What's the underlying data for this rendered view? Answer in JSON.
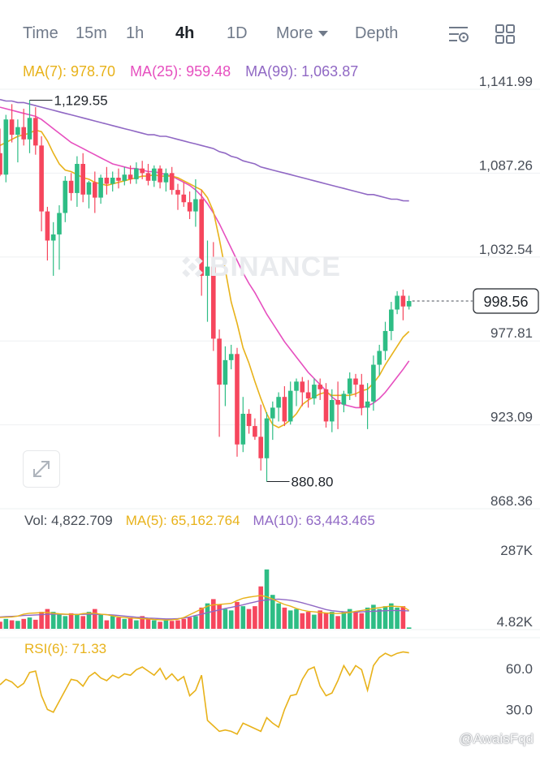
{
  "tabs": [
    {
      "label": "Time",
      "active": false
    },
    {
      "label": "15m",
      "active": false
    },
    {
      "label": "1h",
      "active": false
    },
    {
      "label": "4h",
      "active": true
    },
    {
      "label": "1D",
      "active": false
    },
    {
      "label": "More",
      "active": false
    },
    {
      "label": "Depth",
      "active": false
    }
  ],
  "toolbar_icons": [
    "indicator-settings-icon",
    "layout-grid-icon"
  ],
  "ma_legend": {
    "ma7": "MA(7): 978.70",
    "ma25": "MA(25): 959.48",
    "ma99": "MA(99): 1,063.87"
  },
  "price_axis_labels": [
    "1,141.99",
    "1,087.26",
    "1,032.54",
    "977.81",
    "923.09",
    "868.36"
  ],
  "high_marker": "1,129.55",
  "low_marker": "880.80",
  "current_price": "998.56",
  "watermark": "BINANCE",
  "vol_legend": {
    "vol": "Vol: 4,822.709",
    "ma5": "MA(5): 65,162.764",
    "ma10": "MA(10): 63,443.465"
  },
  "vol_axis_labels": [
    "287K",
    "4.82K"
  ],
  "rsi_legend": "RSI(6): 71.33",
  "rsi_axis_labels": [
    "60.0",
    "30.0"
  ],
  "footer_watermark": "@AwaisFqd",
  "colors": {
    "up": "#2ebd85",
    "down": "#f6465d",
    "ma7": "#e8b21a",
    "ma25": "#e64fbf",
    "ma99": "#9068c4",
    "grid": "#eef0f2"
  },
  "chart_data": {
    "type": "candlestick",
    "interval": "4h",
    "price_ylim": [
      868.36,
      1141.99
    ],
    "candles": [
      [
        1095,
        1111,
        1080,
        1081
      ],
      [
        1081,
        1120,
        1076,
        1117
      ],
      [
        1117,
        1127,
        1102,
        1107
      ],
      [
        1107,
        1117,
        1089,
        1112
      ],
      [
        1112,
        1124,
        1100,
        1104
      ],
      [
        1104,
        1129.55,
        1095,
        1118
      ],
      [
        1118,
        1125,
        1094,
        1100
      ],
      [
        1100,
        1106,
        1044,
        1057
      ],
      [
        1057,
        1060,
        1025,
        1038
      ],
      [
        1038,
        1050,
        1015,
        1042
      ],
      [
        1042,
        1061,
        1019,
        1056
      ],
      [
        1056,
        1080,
        1050,
        1077
      ],
      [
        1077,
        1082,
        1064,
        1069
      ],
      [
        1069,
        1093,
        1060,
        1088
      ],
      [
        1088,
        1095,
        1063,
        1068
      ],
      [
        1068,
        1077,
        1059,
        1076
      ],
      [
        1076,
        1083,
        1056,
        1066
      ],
      [
        1066,
        1081,
        1062,
        1079
      ],
      [
        1079,
        1086,
        1068,
        1075
      ],
      [
        1075,
        1083,
        1070,
        1079
      ],
      [
        1079,
        1085,
        1072,
        1077
      ],
      [
        1077,
        1086,
        1074,
        1081
      ],
      [
        1081,
        1087,
        1075,
        1078
      ],
      [
        1078,
        1089,
        1075,
        1085
      ],
      [
        1085,
        1090,
        1078,
        1082
      ],
      [
        1082,
        1088,
        1074,
        1077
      ],
      [
        1077,
        1087,
        1073,
        1085
      ],
      [
        1085,
        1087,
        1072,
        1076
      ],
      [
        1076,
        1085,
        1070,
        1082
      ],
      [
        1082,
        1086,
        1068,
        1071
      ],
      [
        1071,
        1075,
        1058,
        1068
      ],
      [
        1068,
        1076,
        1060,
        1063
      ],
      [
        1063,
        1070,
        1052,
        1057
      ],
      [
        1057,
        1078,
        1047,
        1065
      ],
      [
        1065,
        1071,
        1002,
        1015
      ],
      [
        1015,
        1038,
        985,
        1021
      ],
      [
        1021,
        1037,
        966,
        974
      ],
      [
        974,
        980,
        910,
        944
      ],
      [
        944,
        969,
        930,
        960
      ],
      [
        960,
        970,
        954,
        964
      ],
      [
        964,
        968,
        897,
        905
      ],
      [
        905,
        936,
        900,
        925
      ],
      [
        925,
        928,
        912,
        917
      ],
      [
        917,
        922,
        908,
        910
      ],
      [
        910,
        931,
        888,
        896
      ],
      [
        896,
        926,
        880.8,
        922
      ],
      [
        922,
        933,
        908,
        929
      ],
      [
        929,
        939,
        920,
        936
      ],
      [
        936,
        943,
        917,
        920
      ],
      [
        920,
        946,
        918,
        940
      ],
      [
        940,
        948,
        930,
        946
      ],
      [
        946,
        949,
        930,
        939
      ],
      [
        939,
        947,
        929,
        935
      ],
      [
        935,
        948,
        931,
        944
      ],
      [
        944,
        948,
        934,
        941
      ],
      [
        941,
        945,
        916,
        920
      ],
      [
        920,
        941,
        913,
        934
      ],
      [
        934,
        946,
        915,
        931
      ],
      [
        931,
        940,
        926,
        938
      ],
      [
        938,
        952,
        934,
        948
      ],
      [
        948,
        951,
        936,
        944
      ],
      [
        944,
        951,
        924,
        929
      ],
      [
        929,
        945,
        915,
        933
      ],
      [
        933,
        963,
        927,
        957
      ],
      [
        957,
        970,
        950,
        966
      ],
      [
        966,
        985,
        960,
        979
      ],
      [
        979,
        998,
        973,
        993
      ],
      [
        993,
        1005,
        990,
        1002
      ],
      [
        1002,
        1006,
        986,
        995
      ],
      [
        995,
        1002,
        993,
        998.56
      ]
    ],
    "ma7": [
      1100,
      1102,
      1104,
      1106,
      1107,
      1108,
      1110,
      1109,
      1103,
      1095,
      1088,
      1084,
      1083,
      1081,
      1079,
      1078,
      1076,
      1075,
      1074,
      1075,
      1076,
      1077,
      1078,
      1079,
      1080,
      1080,
      1081,
      1080,
      1080,
      1080,
      1079,
      1077,
      1075,
      1073,
      1071,
      1066,
      1057,
      1039,
      1019,
      998,
      984,
      968,
      958,
      946,
      935,
      925,
      918,
      916,
      918,
      921,
      925,
      931,
      934,
      936,
      938,
      939,
      937,
      937,
      937,
      937,
      938,
      940,
      941,
      945,
      950,
      957,
      963,
      969,
      975,
      978.7
    ],
    "ma25": [
      1125,
      1124,
      1123,
      1122,
      1121,
      1120,
      1119,
      1117,
      1114,
      1111,
      1108,
      1105,
      1102,
      1100,
      1098,
      1096,
      1094,
      1092,
      1090,
      1088,
      1087,
      1086,
      1085,
      1085,
      1084,
      1083,
      1083,
      1082,
      1081,
      1080,
      1078,
      1076,
      1074,
      1071,
      1067,
      1062,
      1056,
      1049,
      1041,
      1033,
      1025,
      1017,
      1010,
      1004,
      997,
      990,
      984,
      978,
      972,
      967,
      962,
      957,
      952,
      948,
      944,
      940,
      936,
      933,
      931,
      930,
      929,
      929,
      930,
      932,
      935,
      939,
      944,
      949,
      954,
      959.48
    ],
    "ma99": [
      1130,
      1129,
      1129,
      1128,
      1128,
      1127,
      1126,
      1125,
      1124,
      1123,
      1122,
      1121,
      1120,
      1119,
      1118,
      1117,
      1116,
      1115,
      1114,
      1113,
      1112,
      1111,
      1110,
      1109,
      1108,
      1107,
      1107,
      1106,
      1106,
      1105,
      1104,
      1103,
      1102,
      1101,
      1100,
      1099,
      1098,
      1096,
      1095,
      1093,
      1092,
      1090,
      1089,
      1088,
      1086,
      1085,
      1084,
      1083,
      1082,
      1081,
      1080,
      1079,
      1078,
      1077,
      1076,
      1075,
      1074,
      1073,
      1072,
      1071,
      1070,
      1069,
      1068,
      1068,
      1067,
      1066,
      1065,
      1065,
      1064,
      1063.87
    ],
    "volume": [
      25,
      35,
      30,
      28,
      35,
      40,
      32,
      60,
      70,
      60,
      50,
      45,
      55,
      50,
      45,
      60,
      70,
      50,
      30,
      45,
      40,
      35,
      40,
      30,
      45,
      38,
      30,
      25,
      30,
      28,
      30,
      35,
      40,
      45,
      75,
      90,
      105,
      85,
      70,
      65,
      95,
      80,
      70,
      80,
      150,
      210,
      120,
      90,
      75,
      65,
      70,
      55,
      60,
      50,
      65,
      55,
      60,
      45,
      60,
      70,
      60,
      55,
      75,
      85,
      70,
      80,
      90,
      75,
      80,
      4.82
    ],
    "volume_ma5": [
      40,
      41,
      42,
      45,
      52,
      55,
      56,
      57,
      58,
      55,
      53,
      52,
      51,
      50,
      54,
      55,
      55,
      52,
      50,
      46,
      42,
      40,
      38,
      37,
      36,
      35,
      33,
      32,
      31,
      32,
      34,
      40,
      50,
      60,
      70,
      80,
      85,
      86,
      88,
      90,
      100,
      108,
      112,
      115,
      118,
      113,
      105,
      95,
      86,
      80,
      72,
      66,
      62,
      60,
      58,
      56,
      55,
      54,
      56,
      58,
      62,
      65,
      68,
      72,
      75,
      78,
      80,
      79,
      78,
      65.16
    ],
    "volume_ma10": [
      42,
      43,
      44,
      45,
      47,
      48,
      49,
      50,
      51,
      52,
      52,
      51,
      51,
      51,
      51,
      52,
      51,
      51,
      50,
      49,
      47,
      45,
      43,
      41,
      40,
      38,
      37,
      36,
      35,
      35,
      36,
      38,
      42,
      47,
      52,
      57,
      62,
      67,
      72,
      76,
      80,
      85,
      90,
      95,
      100,
      102,
      104,
      105,
      103,
      101,
      97,
      92,
      86,
      80,
      74,
      68,
      64,
      62,
      60,
      59,
      59,
      60,
      61,
      62,
      63,
      64,
      65,
      65,
      64,
      63.44
    ],
    "volume_ylim": [
      4.82,
      287
    ],
    "rsi6": [
      48,
      52,
      50,
      46,
      49,
      57,
      58,
      40,
      30,
      28,
      36,
      44,
      52,
      51,
      47,
      54,
      57,
      53,
      51,
      55,
      53,
      56,
      55,
      59,
      61,
      58,
      55,
      60,
      52,
      56,
      51,
      54,
      40,
      44,
      55,
      22,
      18,
      14,
      15,
      14,
      12,
      20,
      18,
      16,
      14,
      24,
      20,
      17,
      30,
      40,
      41,
      52,
      59,
      61,
      47,
      40,
      42,
      51,
      62,
      55,
      62,
      59,
      44,
      62,
      68,
      71,
      69,
      71,
      72,
      71.33
    ],
    "rsi_ylim": [
      0,
      80
    ]
  }
}
